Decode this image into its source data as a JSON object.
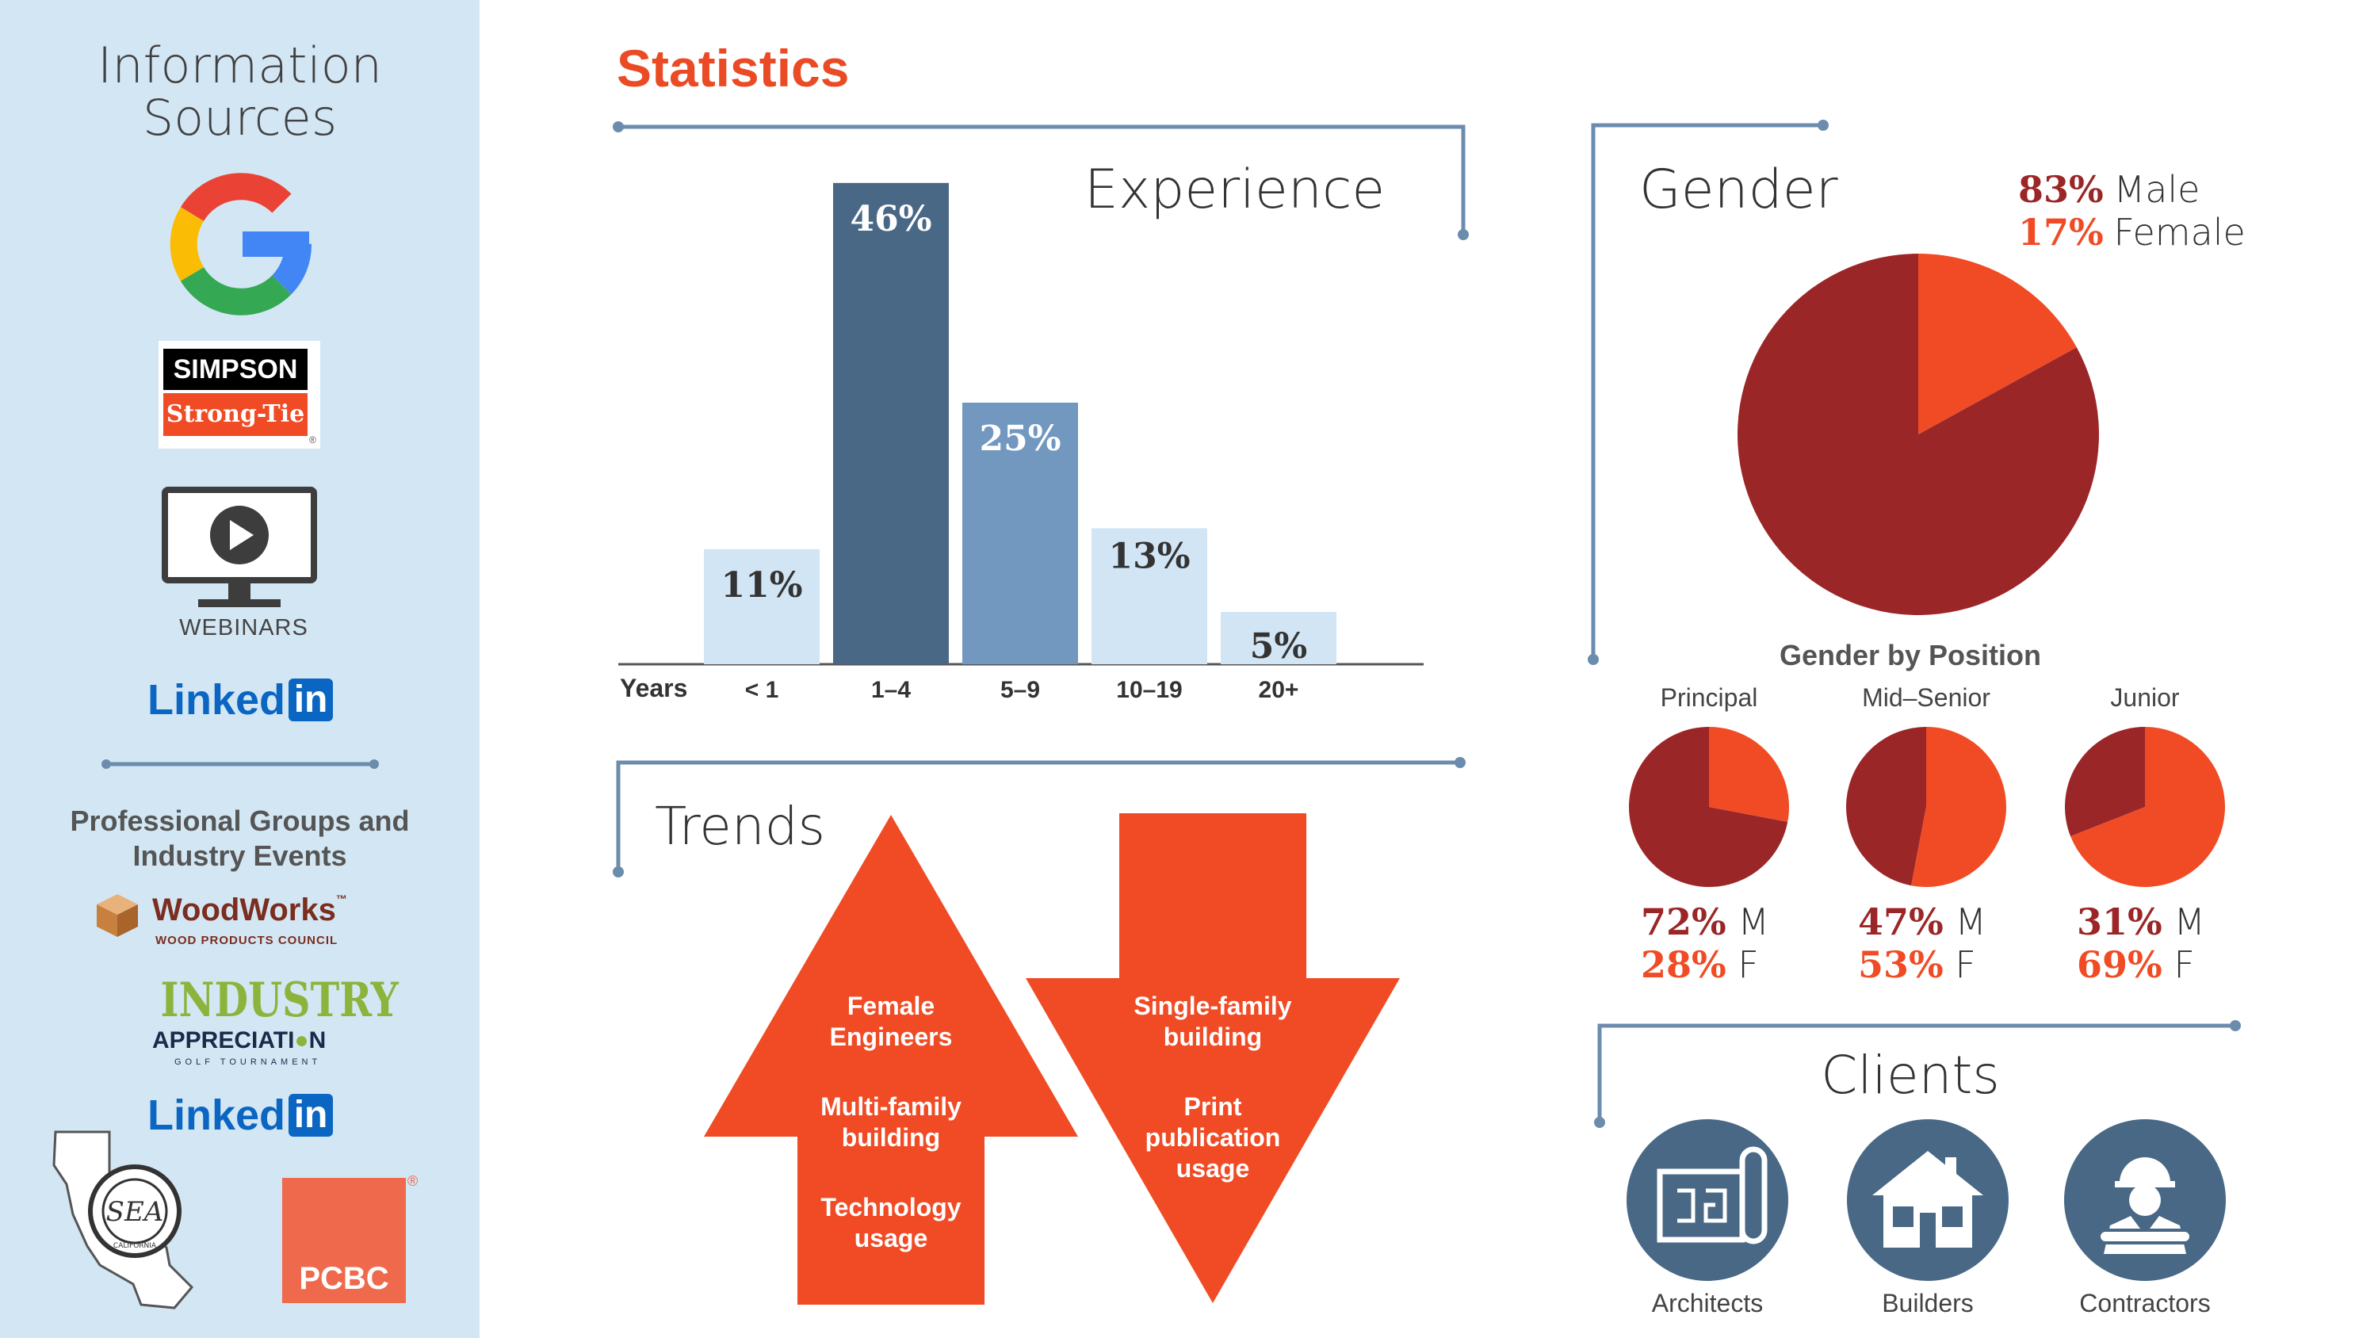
{
  "sidebar": {
    "title_line1": "Information",
    "title_line2": "Sources",
    "simpson_top": "SIMPSON",
    "simpson_bottom": "Strong-Tie",
    "registered": "®",
    "webinars": "WEBINARS",
    "linkedin_text": "Linked",
    "linkedin_in": "in",
    "groups_title_line1": "Professional Groups and",
    "groups_title_line2": "Industry Events",
    "woodworks_name": "WoodWorks",
    "woodworks_tm": "™",
    "woodworks_sub": "WOOD PRODUCTS COUNCIL",
    "industry_line1": "INDUSTRY",
    "industry_line2": "APPRECIATI",
    "industry_line2_end": "N",
    "industry_line3": "GOLF TOURNAMENT",
    "sea_text": "SEA",
    "sea_sub": "CALIFORNIA",
    "pcbc": "PCBC"
  },
  "main": {
    "title": "Statistics",
    "experience_title": "Experience",
    "trends_title": "Trends",
    "gender_title": "Gender",
    "clients_title": "Clients"
  },
  "chart_data": [
    {
      "type": "bar",
      "title": "Experience",
      "xlabel": "Years",
      "categories": [
        "< 1",
        "1–4",
        "5–9",
        "10–19",
        "20+"
      ],
      "values": [
        11,
        46,
        25,
        13,
        5
      ],
      "value_labels": [
        "11%",
        "46%",
        "25%",
        "13%",
        "5%"
      ],
      "colors": [
        "#d1e5f5",
        "#486886",
        "#7298bf",
        "#d1e5f5",
        "#d1e5f5"
      ],
      "ylim": [
        0,
        50
      ],
      "grid": false
    },
    {
      "type": "pie",
      "title": "Gender",
      "labels": [
        "Male",
        "Female"
      ],
      "values": [
        83,
        17
      ],
      "pct_labels": [
        "83%",
        "17%"
      ],
      "colors": [
        "#9b2627",
        "#f04b25"
      ]
    },
    {
      "type": "pie",
      "title": "Gender by Position",
      "charts": [
        {
          "label": "Principal",
          "values": [
            72,
            28
          ],
          "pct_labels": [
            "72%",
            "28%"
          ],
          "legend": [
            "M",
            "F"
          ]
        },
        {
          "label": "Mid–Senior",
          "values": [
            47,
            53
          ],
          "pct_labels": [
            "47%",
            "53%"
          ],
          "legend": [
            "M",
            "F"
          ]
        },
        {
          "label": "Junior",
          "values": [
            31,
            69
          ],
          "pct_labels": [
            "31%",
            "69%"
          ],
          "legend": [
            "M",
            "F"
          ]
        }
      ],
      "colors": [
        "#9b2627",
        "#f04b25"
      ]
    }
  ],
  "trends": {
    "up": [
      "Female Engineers",
      "Multi-family building",
      "Technology usage"
    ],
    "up_lines": [
      [
        "Female",
        "Engineers"
      ],
      [
        "Multi-family",
        "building"
      ],
      [
        "Technology",
        "usage"
      ]
    ],
    "down": [
      "Single-family building",
      "Print publication usage"
    ],
    "down_lines": [
      [
        "Single-family",
        "building"
      ],
      [
        "Print",
        "publication",
        "usage"
      ]
    ],
    "color": "#f04b25"
  },
  "clients": {
    "items": [
      "Architects",
      "Builders",
      "Contractors"
    ],
    "icons": [
      "blueprint-icon",
      "house-icon",
      "worker-icon"
    ],
    "circle_color": "#486886"
  },
  "colors": {
    "accent": "#ea4b24",
    "divider": "#6c8cad",
    "male": "#9b2627",
    "female": "#f04b25",
    "sidebar_bg": "#d3e6f4"
  }
}
